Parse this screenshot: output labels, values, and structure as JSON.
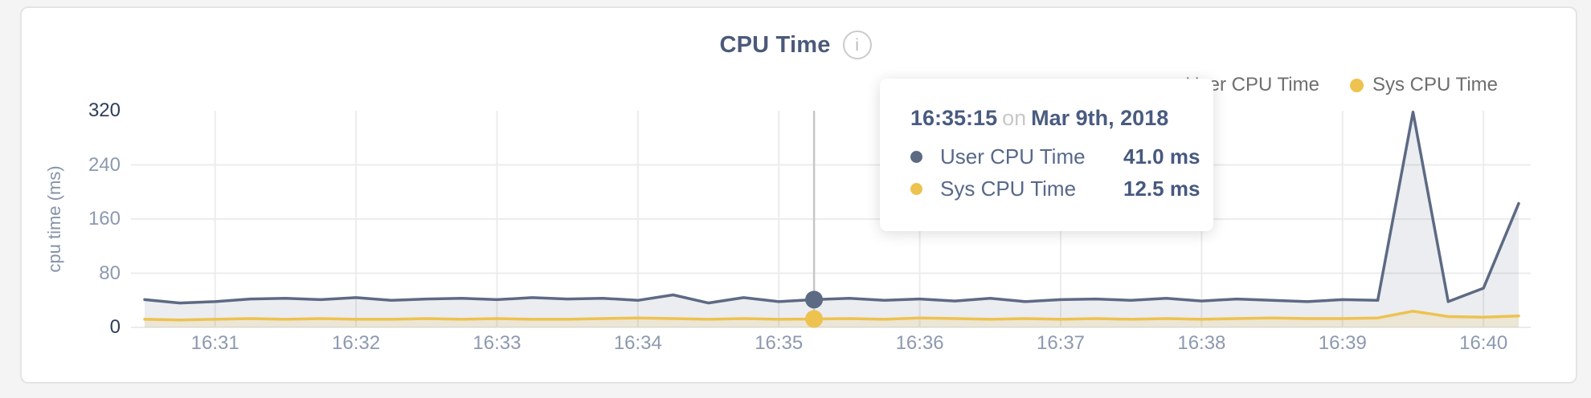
{
  "icons": {
    "info": "i"
  },
  "chart_data": {
    "type": "area",
    "title": "CPU Time",
    "ylabel": "cpu time (ms)",
    "ylim": [
      0,
      320
    ],
    "y_ticks": [
      0,
      80,
      160,
      240,
      320
    ],
    "x_ticks": [
      "16:31",
      "16:32",
      "16:33",
      "16:34",
      "16:35",
      "16:36",
      "16:37",
      "16:38",
      "16:39",
      "16:40"
    ],
    "grid": true,
    "legend_position": "top-right",
    "x": [
      "16:30:30",
      "16:30:45",
      "16:31:00",
      "16:31:15",
      "16:31:30",
      "16:31:45",
      "16:32:00",
      "16:32:15",
      "16:32:30",
      "16:32:45",
      "16:33:00",
      "16:33:15",
      "16:33:30",
      "16:33:45",
      "16:34:00",
      "16:34:15",
      "16:34:30",
      "16:34:45",
      "16:35:00",
      "16:35:15",
      "16:35:30",
      "16:35:45",
      "16:36:00",
      "16:36:15",
      "16:36:30",
      "16:36:45",
      "16:37:00",
      "16:37:15",
      "16:37:30",
      "16:37:45",
      "16:38:00",
      "16:38:15",
      "16:38:30",
      "16:38:45",
      "16:39:00",
      "16:39:15",
      "16:39:30",
      "16:39:45",
      "16:40:00",
      "16:40:15"
    ],
    "series": [
      {
        "name": "User CPU Time",
        "color": "#5d6a84",
        "fill": "rgba(93,106,132,0.12)",
        "values": [
          41,
          36,
          38,
          42,
          43,
          41,
          44,
          40,
          42,
          43,
          41,
          44,
          42,
          43,
          40,
          48,
          36,
          44,
          38,
          41,
          43,
          40,
          42,
          39,
          43,
          38,
          41,
          42,
          40,
          43,
          39,
          42,
          40,
          38,
          41,
          40,
          318,
          38,
          58,
          183
        ]
      },
      {
        "name": "Sys CPU Time",
        "color": "#eec24f",
        "fill": "rgba(238,194,79,0.16)",
        "values": [
          12,
          11,
          12,
          13,
          12,
          13,
          12,
          12,
          13,
          12,
          13,
          12,
          12,
          13,
          14,
          13,
          12,
          13,
          12,
          12.5,
          13,
          12,
          14,
          13,
          12,
          13,
          12,
          13,
          12,
          13,
          12,
          13,
          14,
          13,
          13,
          14,
          24,
          16,
          15,
          17
        ]
      }
    ],
    "tooltip": {
      "time": "16:35:15",
      "on_word": "on",
      "date": "Mar 9th, 2018",
      "rows": [
        {
          "label": "User CPU Time",
          "value": "41.0 ms"
        },
        {
          "label": "Sys CPU Time",
          "value": "12.5 ms"
        }
      ]
    }
  }
}
